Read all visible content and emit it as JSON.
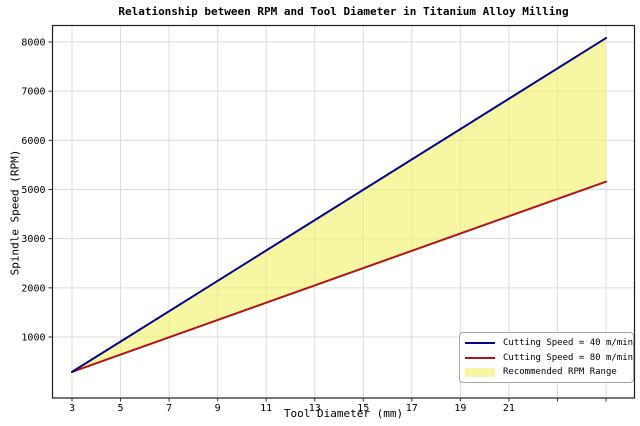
{
  "chart_data": {
    "type": "line",
    "title": "Relationship between RPM and Tool Diameter in Titanium Alloy Milling",
    "xlabel": "Tool Diameter (mm)",
    "ylabel": "Spindle Speed (RPM)",
    "grid": true,
    "xlim": [
      2.2,
      26.2
    ],
    "x_tick_values": [
      3,
      5,
      7,
      9,
      11,
      13,
      15,
      17,
      19,
      21,
      23,
      25
    ],
    "x_tick_labels": [
      "3",
      "5",
      "7",
      "9",
      "11",
      "13",
      "15",
      "17",
      "19",
      "21",
      "",
      ""
    ],
    "y_tick_values": [
      1000,
      2000,
      3000,
      5000,
      6000,
      7000,
      8000
    ],
    "y_tick_labels": [
      "1000",
      "2000",
      "3000",
      "5000",
      "6000",
      "7000",
      "8000"
    ],
    "y_axis_note": "ticks rendered evenly spaced; 4000 not shown",
    "series": [
      {
        "name": "Cutting Speed = 40 m/min",
        "color": "#00008B",
        "x": [
          3,
          25
        ],
        "y": [
          290,
          8080
        ]
      },
      {
        "name": "Cutting Speed = 80 m/min",
        "color": "#B41414",
        "x": [
          3,
          25
        ],
        "y": [
          290,
          5160
        ]
      }
    ],
    "fill_between": {
      "name": "Recommended RPM Range",
      "fill_color": "#F2F266",
      "fill_opacity": 0.6
    },
    "legend": {
      "position": "lower right",
      "entries": [
        {
          "swatch": "line",
          "color": "#00008B",
          "label": "Cutting Speed = 40 m/min"
        },
        {
          "swatch": "line",
          "color": "#B41414",
          "label": "Cutting Speed = 80 m/min"
        },
        {
          "swatch": "patch",
          "color": "#F6F6A4",
          "label": "Recommended RPM Range"
        }
      ]
    },
    "colors": {
      "gridline": "#DCDCDC",
      "spine": "#1f1f1f",
      "tick": "#333333",
      "text": "#000000",
      "background": "#FFFFFF"
    }
  }
}
